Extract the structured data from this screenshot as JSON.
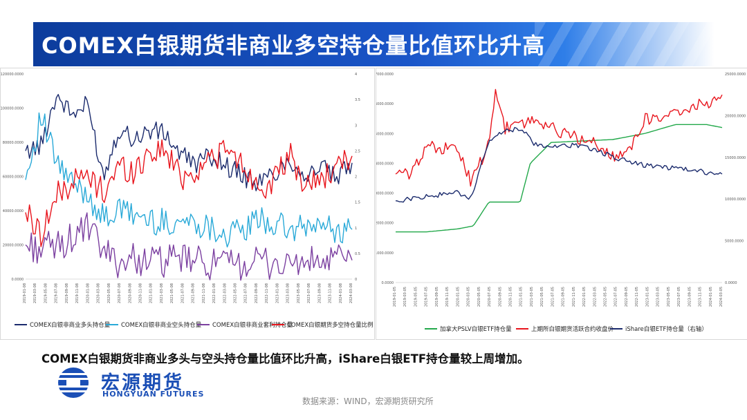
{
  "page": {
    "title": "COMEX白银期货非商业多空持仓量比值环比升高",
    "caption": "COMEX白银期货非商业多头与空头持仓量比值环比升高，iShare白银ETF持仓量较上周增加。",
    "source": "数据来源：WIND，宏源期货研究所",
    "logo_cn": "宏源期货",
    "logo_en": "HONGYUAN FUTURES",
    "colors": {
      "title_bg": "#0c3c9c",
      "logo": "#1b4fb6"
    }
  },
  "chart_data": [
    {
      "type": "line",
      "title": "",
      "left_ylim": [
        0,
        120000
      ],
      "right_ylim": [
        0,
        4
      ],
      "left_ticks": [
        "0.0000",
        "20000.0000",
        "40000.0000",
        "60000.0000",
        "80000.0000",
        "100000.0000",
        "120000.0000"
      ],
      "right_ticks": [
        "0",
        "0.5",
        "1",
        "1.5",
        "2",
        "2.5",
        "3",
        "3.5",
        "4"
      ],
      "x_ticks": [
        "2019-01-08",
        "2019-03-08",
        "2019-05-08",
        "2019-07-08",
        "2019-09-08",
        "2019-11-08",
        "2020-01-08",
        "2020-03-08",
        "2020-05-08",
        "2020-07-08",
        "2020-09-08",
        "2020-11-08",
        "2021-01-08",
        "2021-03-08",
        "2021-05-08",
        "2021-07-08",
        "2021-09-08",
        "2021-11-08",
        "2022-01-08",
        "2022-03-08",
        "2022-05-08",
        "2022-07-08",
        "2022-09-08",
        "2022-11-08",
        "2023-01-08",
        "2023-03-08",
        "2023-05-08",
        "2023-07-08",
        "2023-09-08",
        "2023-11-08",
        "2024-01-08",
        "2024-03-08"
      ],
      "x_range": [
        "2019-01-01",
        "2024-03-31"
      ],
      "legend_position": "bottom",
      "series": [
        {
          "name": "COMEX白银非商业多头持仓量",
          "axis": "left",
          "color": "#1a2a6c",
          "x": [
            "2019-01-01",
            "2019-04-01",
            "2019-07-01",
            "2019-10-01",
            "2020-01-01",
            "2020-04-01",
            "2020-07-01",
            "2020-10-01",
            "2021-01-01",
            "2021-04-01",
            "2021-07-01",
            "2021-10-01",
            "2022-01-01",
            "2022-04-01",
            "2022-07-01",
            "2022-10-01",
            "2023-01-01",
            "2023-04-01",
            "2023-07-01",
            "2023-10-01",
            "2024-01-01",
            "2024-03-31"
          ],
          "values": [
            75000,
            78000,
            108000,
            96000,
            102000,
            60000,
            88000,
            82000,
            87000,
            85000,
            72000,
            68000,
            72000,
            66000,
            60000,
            56000,
            62000,
            70000,
            60000,
            66000,
            58000,
            68000
          ]
        },
        {
          "name": "COMEX白银非商业空头持仓量",
          "axis": "left",
          "color": "#29a9d8",
          "x": [
            "2019-01-01",
            "2019-04-01",
            "2019-07-01",
            "2019-10-01",
            "2020-01-01",
            "2020-04-01",
            "2020-07-01",
            "2020-10-01",
            "2021-01-01",
            "2021-04-01",
            "2021-07-01",
            "2021-10-01",
            "2022-01-01",
            "2022-04-01",
            "2022-07-01",
            "2022-10-01",
            "2023-01-01",
            "2023-04-01",
            "2023-07-01",
            "2023-10-01",
            "2024-01-01",
            "2024-03-31"
          ],
          "values": [
            58000,
            95000,
            68000,
            55000,
            50000,
            35000,
            40000,
            38000,
            34000,
            33000,
            34000,
            33000,
            30000,
            26000,
            28000,
            35000,
            32000,
            28000,
            30000,
            32000,
            28000,
            29000
          ]
        },
        {
          "name": "COMEX白银非商业套利持仓量",
          "axis": "left",
          "color": "#7b3fa0",
          "x": [
            "2019-01-01",
            "2019-04-01",
            "2019-07-01",
            "2019-10-01",
            "2020-01-01",
            "2020-04-01",
            "2020-07-01",
            "2020-10-01",
            "2021-01-01",
            "2021-04-01",
            "2021-07-01",
            "2021-10-01",
            "2022-01-01",
            "2022-04-01",
            "2022-07-01",
            "2022-10-01",
            "2023-01-01",
            "2023-04-01",
            "2023-07-01",
            "2023-10-01",
            "2024-01-01",
            "2024-03-31"
          ],
          "values": [
            20000,
            18000,
            19000,
            24000,
            30000,
            16000,
            10000,
            12000,
            11000,
            10000,
            12000,
            10000,
            9000,
            8000,
            9000,
            10000,
            9000,
            8000,
            10000,
            9000,
            12000,
            11000
          ]
        },
        {
          "name": "COMEX白银期货多空持仓量比例",
          "axis": "right",
          "color": "#e8141c",
          "x": [
            "2019-01-01",
            "2019-04-01",
            "2019-07-01",
            "2019-10-01",
            "2020-01-01",
            "2020-04-01",
            "2020-07-01",
            "2020-10-01",
            "2021-01-01",
            "2021-04-01",
            "2021-07-01",
            "2021-10-01",
            "2022-01-01",
            "2022-04-01",
            "2022-07-01",
            "2022-10-01",
            "2023-01-01",
            "2023-04-01",
            "2023-07-01",
            "2023-10-01",
            "2024-01-01",
            "2024-03-31"
          ],
          "values": [
            1.3,
            0.9,
            1.6,
            1.9,
            2.0,
            1.7,
            2.2,
            2.1,
            2.5,
            2.5,
            2.0,
            2.1,
            2.4,
            2.5,
            2.2,
            1.8,
            1.9,
            2.4,
            1.8,
            2.0,
            2.1,
            2.4
          ]
        }
      ]
    },
    {
      "type": "line",
      "title": "",
      "left_ylim": [
        0,
        7000
      ],
      "right_ylim": [
        0,
        25000
      ],
      "left_ticks": [
        "0.0000",
        "1000.0000",
        "2000.0000",
        "3000.0000",
        "4000.0000",
        "5000.0000",
        "6000.0000",
        "7000.0000"
      ],
      "right_ticks": [
        "0.0000",
        "5000.0000",
        "10000.0000",
        "15000.0000",
        "20000.0000",
        "25000.0000"
      ],
      "x_ticks": [
        "2019-01-05",
        "2019-03-05",
        "2019-05-05",
        "2019-07-05",
        "2019-09-05",
        "2019-11-05",
        "2020-01-05",
        "2020-03-05",
        "2020-05-05",
        "2020-07-05",
        "2020-09-05",
        "2020-11-05",
        "2021-01-05",
        "2021-03-05",
        "2021-05-05",
        "2021-07-05",
        "2021-09-05",
        "2021-11-05",
        "2022-01-05",
        "2022-03-05",
        "2022-05-05",
        "2022-07-05",
        "2022-09-05",
        "2022-11-05",
        "2023-01-05",
        "2023-03-05",
        "2023-05-05",
        "2023-07-05",
        "2023-09-05",
        "2023-11-05",
        "2024-01-05",
        "2024-03-05"
      ],
      "x_range": [
        "2019-01-01",
        "2024-03-31"
      ],
      "legend_position": "bottom",
      "series": [
        {
          "name": "加拿大PSLV白银ETF持仓量",
          "axis": "left",
          "color": "#22a84a",
          "x": [
            "2019-01-01",
            "2019-07-01",
            "2020-01-01",
            "2020-04-01",
            "2020-07-01",
            "2020-10-01",
            "2021-01-01",
            "2021-03-01",
            "2021-07-01",
            "2022-01-01",
            "2022-07-01",
            "2023-01-01",
            "2023-07-01",
            "2024-01-01",
            "2024-03-31"
          ],
          "values": [
            1700,
            1700,
            1800,
            1900,
            2700,
            2700,
            2700,
            4000,
            4700,
            4750,
            4800,
            5000,
            5300,
            5300,
            5200
          ]
        },
        {
          "name": "上期所白银期货活跃合约收盘价",
          "axis": "right",
          "color": "#e8141c",
          "x": [
            "2019-01-01",
            "2019-04-01",
            "2019-07-01",
            "2019-10-01",
            "2020-01-01",
            "2020-03-20",
            "2020-07-01",
            "2020-08-10",
            "2020-10-01",
            "2021-01-01",
            "2021-04-01",
            "2021-07-01",
            "2021-10-01",
            "2022-01-01",
            "2022-04-01",
            "2022-07-01",
            "2022-10-01",
            "2023-01-01",
            "2023-04-01",
            "2023-07-01",
            "2023-10-01",
            "2024-01-01",
            "2024-03-31"
          ],
          "values": [
            13000,
            13000,
            16500,
            16000,
            16000,
            12000,
            16500,
            22800,
            18500,
            19000,
            19500,
            18500,
            17800,
            17000,
            16500,
            15000,
            16000,
            19500,
            20000,
            20500,
            21000,
            21500,
            22500
          ]
        },
        {
          "name": "iShare白银ETF持仓量（右轴）",
          "axis": "right",
          "color": "#1a2a6c",
          "x": [
            "2019-01-01",
            "2019-07-01",
            "2020-01-01",
            "2020-03-20",
            "2020-07-01",
            "2020-08-10",
            "2021-01-01",
            "2021-04-01",
            "2021-07-01",
            "2022-01-01",
            "2022-07-01",
            "2023-01-01",
            "2023-07-01",
            "2024-01-01",
            "2024-03-31"
          ],
          "values": [
            9800,
            10300,
            10800,
            10000,
            17000,
            17800,
            18500,
            16500,
            16200,
            16500,
            15000,
            14000,
            13700,
            13200,
            13000
          ]
        }
      ]
    }
  ]
}
